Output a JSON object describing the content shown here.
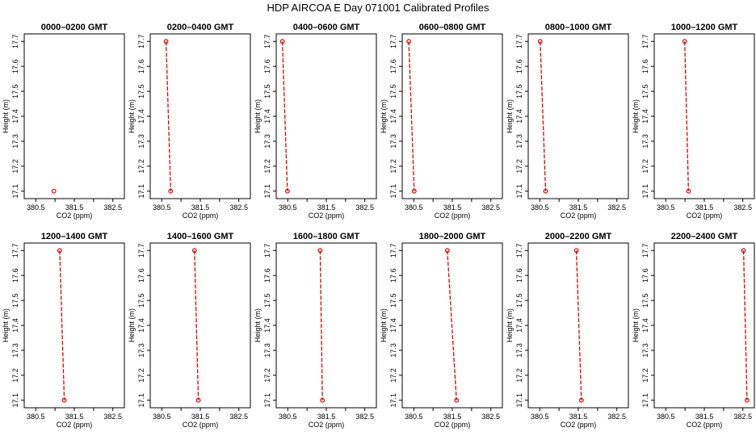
{
  "title": "HDP  AIRCOA E  Day 071001  Calibrated Profiles",
  "colors": {
    "series": "#dd0000",
    "frame": "#000000",
    "background": "#ffffff"
  },
  "chart_data": {
    "type": "line",
    "grid": false,
    "xlabel": "CO2 (ppm)",
    "ylabel": "Height (m)",
    "xlim": [
      380.2,
      382.8
    ],
    "ylim": [
      17.07,
      17.73
    ],
    "xticks": [
      "380.5",
      "381.5",
      "382.5"
    ],
    "xtick_values": [
      380.5,
      381.0,
      381.5,
      382.0,
      382.5
    ],
    "yticks": [
      "17.1",
      "17.2",
      "17.3",
      "17.4",
      "17.5",
      "17.6",
      "17.7"
    ],
    "ytick_values": [
      17.1,
      17.2,
      17.3,
      17.4,
      17.5,
      17.6,
      17.7
    ],
    "panels": [
      {
        "title": "0000–0200 GMT",
        "points": [
          {
            "x": 380.97,
            "y": 17.1
          }
        ]
      },
      {
        "title": "0200–0400 GMT",
        "points": [
          {
            "x": 380.61,
            "y": 17.7
          },
          {
            "x": 380.73,
            "y": 17.1
          }
        ]
      },
      {
        "title": "0400–0600 GMT",
        "points": [
          {
            "x": 380.36,
            "y": 17.7
          },
          {
            "x": 380.49,
            "y": 17.1
          }
        ]
      },
      {
        "title": "0600–0800 GMT",
        "points": [
          {
            "x": 380.37,
            "y": 17.7
          },
          {
            "x": 380.51,
            "y": 17.1
          }
        ]
      },
      {
        "title": "0800–1000 GMT",
        "points": [
          {
            "x": 380.51,
            "y": 17.7
          },
          {
            "x": 380.65,
            "y": 17.1
          }
        ]
      },
      {
        "title": "1000–1200 GMT",
        "points": [
          {
            "x": 380.99,
            "y": 17.7
          },
          {
            "x": 381.09,
            "y": 17.1
          }
        ]
      },
      {
        "title": "1200–1400 GMT",
        "points": [
          {
            "x": 381.12,
            "y": 17.7
          },
          {
            "x": 381.24,
            "y": 17.1
          }
        ]
      },
      {
        "title": "1400–1600 GMT",
        "points": [
          {
            "x": 381.35,
            "y": 17.7
          },
          {
            "x": 381.45,
            "y": 17.1
          }
        ]
      },
      {
        "title": "1600–1800 GMT",
        "points": [
          {
            "x": 381.34,
            "y": 17.7
          },
          {
            "x": 381.4,
            "y": 17.1
          }
        ]
      },
      {
        "title": "1800–2000 GMT",
        "points": [
          {
            "x": 381.37,
            "y": 17.7
          },
          {
            "x": 381.61,
            "y": 17.1
          }
        ]
      },
      {
        "title": "2000–2200 GMT",
        "points": [
          {
            "x": 381.45,
            "y": 17.7
          },
          {
            "x": 381.58,
            "y": 17.1
          }
        ]
      },
      {
        "title": "2200–2400 GMT",
        "points": [
          {
            "x": 382.52,
            "y": 17.7
          },
          {
            "x": 382.61,
            "y": 17.1
          }
        ]
      }
    ]
  }
}
